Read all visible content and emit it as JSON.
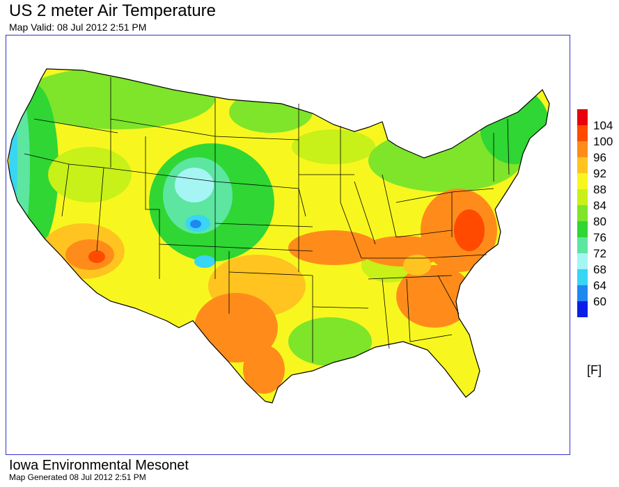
{
  "header": {
    "title": "US 2 meter Air Temperature",
    "valid": "Map Valid: 08 Jul 2012 2:51 PM"
  },
  "legend": {
    "units": "[F]",
    "levels": [
      {
        "label": "104",
        "color": "#e8000b"
      },
      {
        "label": "100",
        "color": "#ff4a00"
      },
      {
        "label": "96",
        "color": "#ff8c1a"
      },
      {
        "label": "92",
        "color": "#ffc41f"
      },
      {
        "label": "88",
        "color": "#f7f71f"
      },
      {
        "label": "84",
        "color": "#c8f019"
      },
      {
        "label": "80",
        "color": "#7ee52a"
      },
      {
        "label": "76",
        "color": "#2fd634"
      },
      {
        "label": "72",
        "color": "#5ce6a0"
      },
      {
        "label": "68",
        "color": "#a6f5f5"
      },
      {
        "label": "64",
        "color": "#38d5f5"
      },
      {
        "label": "60",
        "color": "#1f88f0"
      },
      {
        "label": "",
        "color": "#0a1fe6"
      }
    ]
  },
  "footer": {
    "org": "Iowa Environmental Mesonet",
    "generated": "Map Generated 08 Jul 2012 2:51 PM"
  }
}
